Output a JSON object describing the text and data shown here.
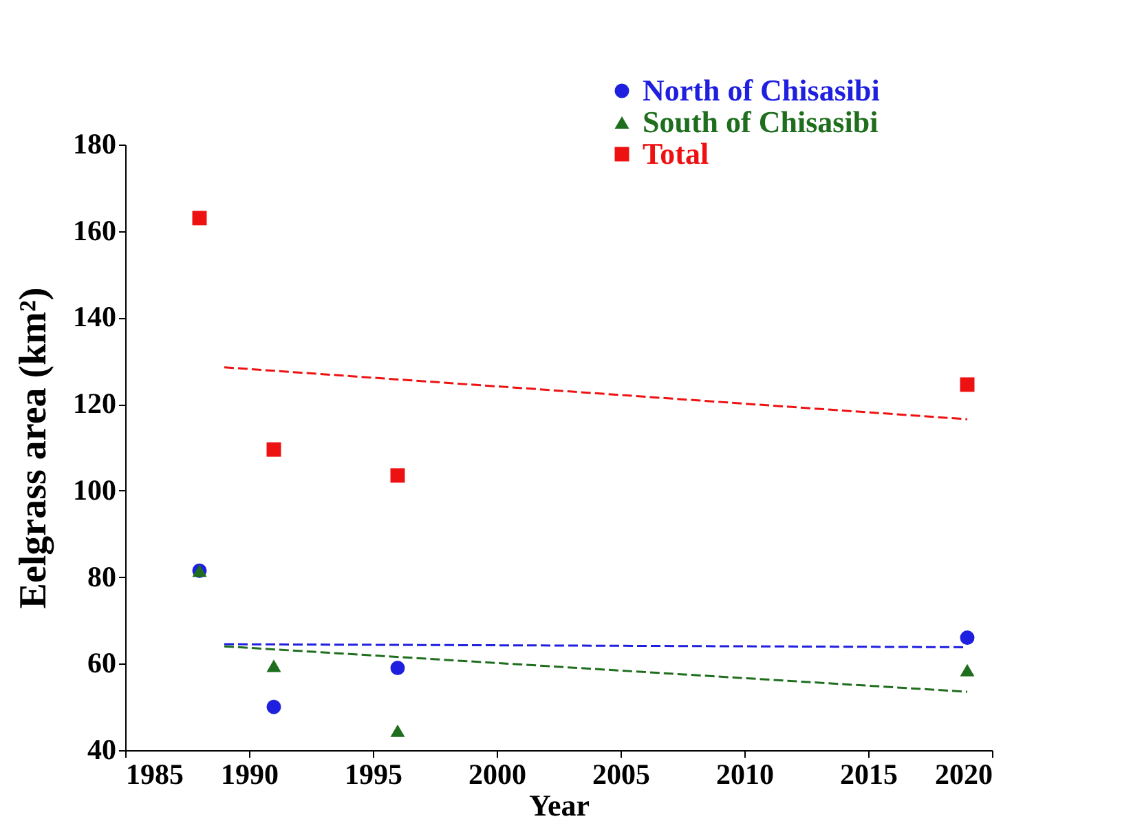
{
  "chart_data": {
    "type": "scatter",
    "xlabel": "Year",
    "ylabel": "Eelgrass area (km²)",
    "xlim": [
      1985,
      2020
    ],
    "xticks": [
      1985,
      1990,
      1995,
      2000,
      2005,
      2010,
      2015,
      2020
    ],
    "ylim": [
      40,
      180
    ],
    "yticks": [
      40,
      60,
      80,
      100,
      120,
      140,
      160,
      180
    ],
    "grid": false,
    "legend": "top right",
    "series": [
      {
        "name": "North of Chisasibi",
        "color": "#1f1fe0",
        "marker": "circle",
        "x": [
          1988,
          1991,
          1996,
          2019
        ],
        "values": [
          81.5,
          50,
          59,
          66
        ]
      },
      {
        "name": "South of Chisasibi",
        "color": "#1e6e1e",
        "marker": "triangle",
        "x": [
          1988,
          1991,
          1996,
          2019
        ],
        "values": [
          81.5,
          59.5,
          44.5,
          58.5
        ]
      },
      {
        "name": "Total",
        "color": "#ee1111",
        "marker": "square",
        "x": [
          1988,
          1991,
          1996,
          2019
        ],
        "values": [
          163,
          109.5,
          103.5,
          124.5
        ]
      },
      {
        "type": "line",
        "color": "#1f1fe0",
        "marker": "none",
        "line_style": "dashed",
        "x": [
          1989,
          2019
        ],
        "values": [
          64.5,
          63.8
        ]
      },
      {
        "type": "line",
        "color": "#1e6e1e",
        "marker": "none",
        "line_style": "dashed",
        "x": [
          1989,
          2019
        ],
        "values": [
          64,
          53.5
        ]
      },
      {
        "type": "line",
        "color": "#ee1111",
        "marker": "none",
        "line_style": "dashed",
        "x": [
          1989,
          2019
        ],
        "values": [
          128.5,
          116.5
        ]
      }
    ]
  }
}
